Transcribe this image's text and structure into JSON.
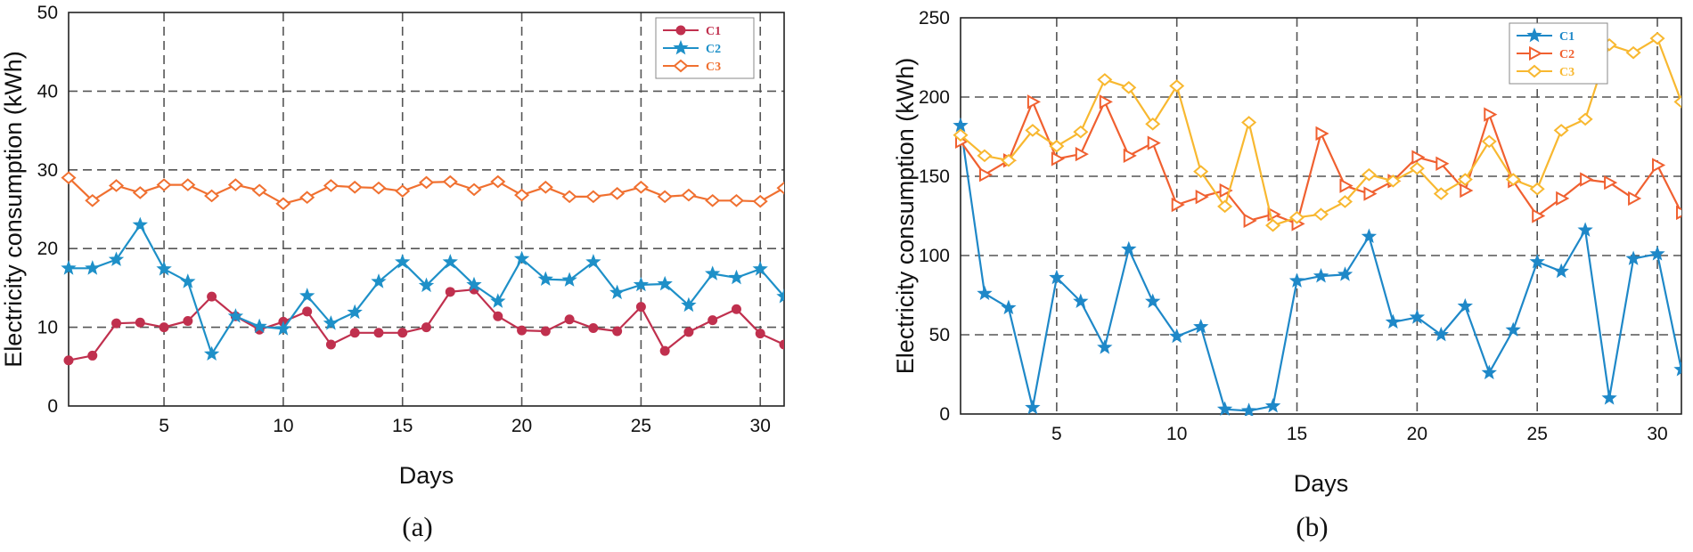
{
  "chart_data": [
    {
      "type": "line",
      "caption": "(a)",
      "xlabel": "Days",
      "ylabel": "Electricity consumption (kWh)",
      "xlim": [
        1,
        31
      ],
      "ylim": [
        0,
        50
      ],
      "xticks": [
        5,
        10,
        15,
        20,
        25,
        30
      ],
      "yticks": [
        0,
        10,
        20,
        30,
        40,
        50
      ],
      "grid": true,
      "legend_position": "top-right",
      "x": [
        1,
        2,
        3,
        4,
        5,
        6,
        7,
        8,
        9,
        10,
        11,
        12,
        13,
        14,
        15,
        16,
        17,
        18,
        19,
        20,
        21,
        22,
        23,
        24,
        25,
        26,
        27,
        28,
        29,
        30,
        31
      ],
      "series": [
        {
          "name": "C1",
          "color": "#c0304e",
          "marker": "circle",
          "values": [
            5.8,
            6.4,
            10.5,
            10.6,
            10,
            10.8,
            13.9,
            11.4,
            9.7,
            10.7,
            12,
            7.8,
            9.3,
            9.3,
            9.3,
            10,
            14.5,
            14.8,
            11.4,
            9.6,
            9.5,
            11,
            9.9,
            9.5,
            12.6,
            7,
            9.4,
            10.9,
            12.3,
            9.2,
            7.8
          ]
        },
        {
          "name": "C2",
          "color": "#1e90c8",
          "marker": "star",
          "values": [
            17.5,
            17.5,
            18.6,
            23,
            17.4,
            15.8,
            6.6,
            11.4,
            10.1,
            9.8,
            14,
            10.5,
            11.9,
            15.8,
            18.3,
            15.3,
            18.3,
            15.4,
            13.3,
            18.7,
            16.1,
            16,
            18.3,
            14.4,
            15.4,
            15.5,
            12.8,
            16.8,
            16.3,
            17.4,
            13.9
          ]
        },
        {
          "name": "C3",
          "color": "#f07030",
          "marker": "diamond",
          "values": [
            29,
            26.1,
            28,
            27.1,
            28.1,
            28.1,
            26.7,
            28.1,
            27.4,
            25.7,
            26.5,
            28,
            27.8,
            27.7,
            27.3,
            28.4,
            28.5,
            27.5,
            28.5,
            26.8,
            27.8,
            26.6,
            26.6,
            27,
            27.8,
            26.6,
            26.8,
            26.1,
            26.1,
            26,
            27.7
          ]
        }
      ]
    },
    {
      "type": "line",
      "caption": "(b)",
      "xlabel": "Days",
      "ylabel": "Electricity consumption (kWh)",
      "xlim": [
        1,
        31
      ],
      "ylim": [
        0,
        250
      ],
      "xticks": [
        5,
        10,
        15,
        20,
        25,
        30
      ],
      "yticks": [
        0,
        50,
        100,
        150,
        200,
        250
      ],
      "grid": true,
      "legend_position": "top-right",
      "x": [
        1,
        2,
        3,
        4,
        5,
        6,
        7,
        8,
        9,
        10,
        11,
        12,
        13,
        14,
        15,
        16,
        17,
        18,
        19,
        20,
        21,
        22,
        23,
        24,
        25,
        26,
        27,
        28,
        29,
        30,
        31
      ],
      "series": [
        {
          "name": "C1",
          "color": "#1e88c8",
          "marker": "star",
          "values": [
            182,
            76,
            67,
            4,
            86,
            71,
            42,
            104,
            71,
            49,
            55,
            3,
            2,
            5,
            84,
            87,
            88,
            112,
            58,
            61,
            50,
            68,
            26,
            53,
            96,
            90,
            116,
            10,
            98,
            101,
            28
          ]
        },
        {
          "name": "C2",
          "color": "#f06030",
          "marker": "triangle-right",
          "values": [
            172,
            151,
            160,
            197,
            161,
            164,
            197,
            163,
            171,
            132,
            137,
            141,
            122,
            126,
            120,
            177,
            144,
            139,
            147,
            162,
            158,
            141,
            189,
            147,
            125,
            136,
            148,
            146,
            136,
            157,
            127
          ]
        },
        {
          "name": "C3",
          "color": "#f8b830",
          "marker": "diamond",
          "values": [
            176,
            163,
            160,
            179,
            169,
            178,
            211,
            206,
            183,
            207,
            153,
            131,
            184,
            119,
            124,
            126,
            134,
            151,
            147,
            155,
            139,
            148,
            172,
            148,
            142,
            179,
            186,
            233,
            228,
            237,
            197
          ]
        }
      ]
    }
  ]
}
